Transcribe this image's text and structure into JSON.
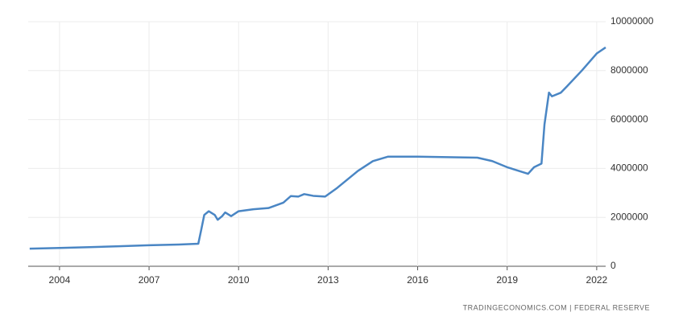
{
  "chart_data": {
    "type": "line",
    "x": [
      2003.0,
      2004.0,
      2005.0,
      2006.0,
      2007.0,
      2008.0,
      2008.65,
      2008.75,
      2008.85,
      2009.0,
      2009.2,
      2009.3,
      2009.45,
      2009.55,
      2009.75,
      2010.0,
      2010.5,
      2011.0,
      2011.5,
      2011.75,
      2012.0,
      2012.2,
      2012.5,
      2012.9,
      2013.3,
      2014.0,
      2014.5,
      2015.0,
      2016.0,
      2017.0,
      2018.0,
      2018.5,
      2019.0,
      2019.7,
      2019.9,
      2020.15,
      2020.25,
      2020.4,
      2020.5,
      2020.8,
      2021.0,
      2021.5,
      2022.0,
      2022.3
    ],
    "values": [
      720000,
      750000,
      780000,
      820000,
      860000,
      890000,
      920000,
      1500000,
      2100000,
      2250000,
      2100000,
      1900000,
      2050000,
      2200000,
      2050000,
      2250000,
      2330000,
      2380000,
      2600000,
      2870000,
      2850000,
      2950000,
      2880000,
      2850000,
      3200000,
      3900000,
      4300000,
      4480000,
      4480000,
      4460000,
      4440000,
      4300000,
      4050000,
      3780000,
      4050000,
      4200000,
      5800000,
      7100000,
      6950000,
      7100000,
      7350000,
      8000000,
      8700000,
      8950000
    ],
    "color": "#4a86c4",
    "xlim": [
      2002.95,
      2022.3
    ],
    "xticks": [
      2004,
      2007,
      2010,
      2013,
      2016,
      2019,
      2022
    ],
    "ylim": [
      0,
      10000000
    ],
    "yticks": [
      0,
      2000000,
      4000000,
      6000000,
      8000000,
      10000000
    ],
    "grid": true,
    "source": "TRADINGECONOMICS.COM  |  FEDERAL RESERVE"
  }
}
